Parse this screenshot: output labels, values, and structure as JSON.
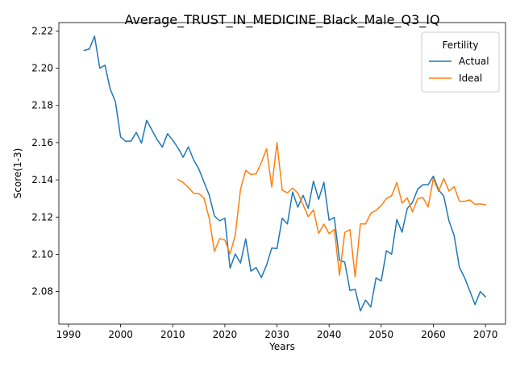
{
  "chart_data": {
    "type": "line",
    "title": "Average_TRUST_IN_MEDICINE_Black_Male_Q3_IQ",
    "xlabel": "Years",
    "ylabel": "Score(1-3)",
    "xlim": [
      1988.15,
      2073.85
    ],
    "ylim": [
      2.0625,
      2.2245
    ],
    "xticks": [
      1990,
      2000,
      2010,
      2020,
      2030,
      2040,
      2050,
      2060,
      2070
    ],
    "xtick_labels": [
      "1990",
      "2000",
      "2010",
      "2020",
      "2030",
      "2040",
      "2050",
      "2060",
      "2070"
    ],
    "yticks": [
      2.08,
      2.1,
      2.12,
      2.14,
      2.16,
      2.18,
      2.2,
      2.22
    ],
    "ytick_labels": [
      "2.08",
      "2.10",
      "2.12",
      "2.14",
      "2.16",
      "2.18",
      "2.20",
      "2.22"
    ],
    "grid": false,
    "legend": {
      "title": "Fertility",
      "position": "top-right"
    },
    "series": [
      {
        "name": "Actual",
        "color": "#1f77b4",
        "x": [
          1993,
          1994,
          1995,
          1996,
          1997,
          1998,
          1999,
          2000,
          2001,
          2002,
          2003,
          2004,
          2005,
          2006,
          2007,
          2008,
          2009,
          2010,
          2011,
          2012,
          2013,
          2014,
          2015,
          2016,
          2017,
          2018,
          2019,
          2020,
          2021,
          2022,
          2023,
          2024,
          2025,
          2026,
          2027,
          2028,
          2029,
          2030,
          2031,
          2032,
          2033,
          2034,
          2035,
          2036,
          2037,
          2038,
          2039,
          2040,
          2041,
          2042,
          2043,
          2044,
          2045,
          2046,
          2047,
          2048,
          2049,
          2050,
          2051,
          2052,
          2053,
          2054,
          2055,
          2056,
          2057,
          2058,
          2059,
          2060,
          2061,
          2062,
          2063,
          2064,
          2065,
          2066,
          2067,
          2068,
          2069,
          2070
        ],
        "values": [
          2.2095,
          2.2103,
          2.2172,
          2.2,
          2.2016,
          2.1888,
          2.182,
          2.163,
          2.1607,
          2.1608,
          2.1655,
          2.1597,
          2.172,
          2.1668,
          2.1617,
          2.1576,
          2.1648,
          2.1613,
          2.1572,
          2.1522,
          2.1577,
          2.1508,
          2.1459,
          2.1388,
          2.1318,
          2.1206,
          2.118,
          2.1194,
          2.0925,
          2.1002,
          2.0953,
          2.1083,
          2.091,
          2.0929,
          2.0875,
          2.0942,
          2.1034,
          2.1031,
          2.1194,
          2.1163,
          2.1335,
          2.1253,
          2.1317,
          2.1247,
          2.1393,
          2.1295,
          2.1387,
          2.1183,
          2.1198,
          2.0968,
          2.0958,
          2.0806,
          2.0812,
          2.0696,
          2.0754,
          2.0717,
          2.0873,
          2.0857,
          2.1019,
          2.1001,
          2.1187,
          2.1119,
          2.1246,
          2.1279,
          2.135,
          2.1374,
          2.1374,
          2.142,
          2.1347,
          2.1312,
          2.118,
          2.11,
          2.093,
          2.0874,
          2.0803,
          2.073,
          2.08,
          2.0772
        ]
      },
      {
        "name": "Ideal",
        "color": "#ff7f0e",
        "x": [
          2011,
          2012,
          2013,
          2014,
          2015,
          2016,
          2017,
          2018,
          2019,
          2020,
          2021,
          2022,
          2023,
          2024,
          2025,
          2026,
          2027,
          2028,
          2029,
          2030,
          2031,
          2032,
          2033,
          2034,
          2035,
          2036,
          2037,
          2038,
          2039,
          2040,
          2041,
          2042,
          2043,
          2044,
          2045,
          2046,
          2047,
          2048,
          2049,
          2050,
          2051,
          2052,
          2053,
          2054,
          2055,
          2056,
          2057,
          2058,
          2059,
          2060,
          2061,
          2062,
          2063,
          2064,
          2065,
          2066,
          2067,
          2068,
          2069,
          2070
        ],
        "values": [
          2.1402,
          2.1386,
          2.1359,
          2.1328,
          2.1326,
          2.1302,
          2.1193,
          2.1015,
          2.1084,
          2.1077,
          2.1002,
          2.1104,
          2.1348,
          2.1451,
          2.1429,
          2.1432,
          2.1493,
          2.1567,
          2.1361,
          2.16,
          2.1345,
          2.133,
          2.1356,
          2.1329,
          2.1267,
          2.1202,
          2.1239,
          2.1112,
          2.1162,
          2.1111,
          2.1133,
          2.0888,
          2.1117,
          2.1133,
          2.0879,
          2.1163,
          2.1163,
          2.122,
          2.1236,
          2.1262,
          2.13,
          2.1315,
          2.1386,
          2.1275,
          2.1303,
          2.1228,
          2.1299,
          2.1305,
          2.1254,
          2.1408,
          2.1338,
          2.1407,
          2.134,
          2.1364,
          2.1285,
          2.1285,
          2.1292,
          2.1269,
          2.1271,
          2.1266
        ]
      }
    ]
  }
}
